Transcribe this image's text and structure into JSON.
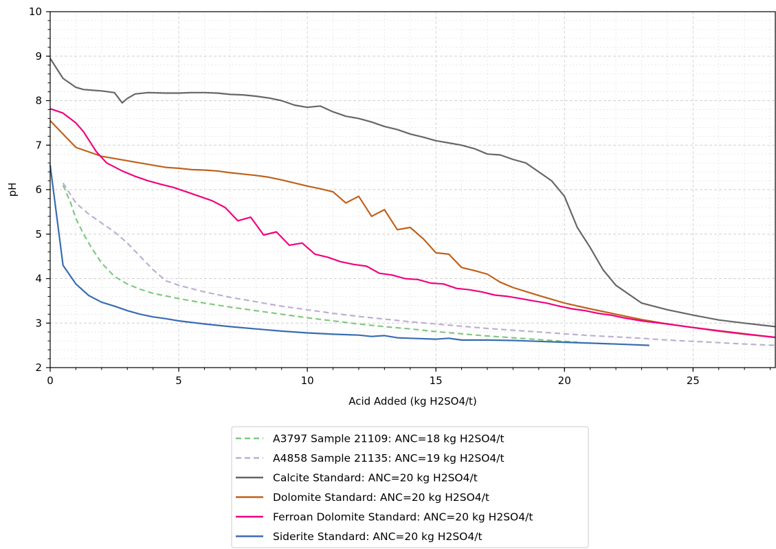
{
  "chart_data": {
    "type": "line",
    "title": "",
    "xlabel": "Acid Added (kg H2SO4/t)",
    "ylabel": "pH",
    "xlim": [
      0,
      28.2
    ],
    "ylim": [
      2,
      10
    ],
    "xticks": [
      "0",
      "5",
      "10",
      "15",
      "20",
      "25"
    ],
    "yticks": [
      "2",
      "3",
      "4",
      "5",
      "6",
      "7",
      "8",
      "9",
      "10"
    ],
    "grid": true,
    "legend_position": "below plot, centered",
    "series": [
      {
        "name": "A3797 Sample 21109: ANC=18 kg H2SO4/t",
        "color": "#7fc97f",
        "dash": "dashed",
        "x": [
          0.5,
          0.8,
          1.0,
          1.3,
          1.6,
          2.0,
          2.5,
          3.0,
          3.5,
          4.0,
          5.0,
          6.0,
          7.0,
          8.0,
          9.0,
          10.0,
          11.0,
          12.0,
          13.0,
          14.0,
          15.0,
          16.0,
          17.0,
          18.0,
          19.0,
          20.0,
          20.5
        ],
        "y": [
          6.1,
          5.7,
          5.35,
          5.0,
          4.7,
          4.35,
          4.05,
          3.88,
          3.76,
          3.67,
          3.55,
          3.45,
          3.36,
          3.28,
          3.2,
          3.12,
          3.05,
          2.98,
          2.92,
          2.87,
          2.81,
          2.76,
          2.71,
          2.67,
          2.63,
          2.59,
          2.57
        ]
      },
      {
        "name": "A4858 Sample 21135: ANC=19 kg H2SO4/t",
        "color": "#beaed4",
        "dash": "dashed",
        "x": [
          0.5,
          1.0,
          1.5,
          2.0,
          2.5,
          3.0,
          3.5,
          4.0,
          4.5,
          5.0,
          6.0,
          7.0,
          8.0,
          9.0,
          10.0,
          11.0,
          12.0,
          13.0,
          14.0,
          15.0,
          16.0,
          17.0,
          18.0,
          19.0,
          20.0,
          21.0,
          22.0,
          23.0,
          24.0,
          25.0,
          26.0,
          27.0,
          28.2
        ],
        "y": [
          6.15,
          5.7,
          5.45,
          5.25,
          5.05,
          4.8,
          4.5,
          4.2,
          3.95,
          3.85,
          3.7,
          3.58,
          3.48,
          3.38,
          3.3,
          3.22,
          3.15,
          3.09,
          3.03,
          2.98,
          2.93,
          2.88,
          2.84,
          2.8,
          2.76,
          2.72,
          2.69,
          2.66,
          2.62,
          2.59,
          2.56,
          2.53,
          2.5
        ]
      },
      {
        "name": "Calcite Standard: ANC=20 kg H2SO4/t",
        "color": "#666666",
        "dash": "solid",
        "x": [
          0,
          0.5,
          1.0,
          1.3,
          2.0,
          2.5,
          2.8,
          3.0,
          3.3,
          3.8,
          4.5,
          5.0,
          5.5,
          6.0,
          6.5,
          7.0,
          7.5,
          8.0,
          8.5,
          9.0,
          9.5,
          10.0,
          10.5,
          11.0,
          11.5,
          12.0,
          12.5,
          13.0,
          13.5,
          14.0,
          14.5,
          15.0,
          15.5,
          16.0,
          16.5,
          17.0,
          17.5,
          18.0,
          18.5,
          19.0,
          19.5,
          20.0,
          20.5,
          21.0,
          21.5,
          22.0,
          22.5,
          23.0,
          24.0,
          25.0,
          26.0,
          27.0,
          28.2
        ],
        "y": [
          8.95,
          8.5,
          8.3,
          8.25,
          8.22,
          8.18,
          7.95,
          8.05,
          8.15,
          8.18,
          8.17,
          8.17,
          8.18,
          8.18,
          8.17,
          8.14,
          8.13,
          8.1,
          8.06,
          8.0,
          7.9,
          7.85,
          7.88,
          7.75,
          7.65,
          7.6,
          7.52,
          7.42,
          7.35,
          7.25,
          7.18,
          7.1,
          7.05,
          7.0,
          6.92,
          6.8,
          6.78,
          6.68,
          6.6,
          6.4,
          6.2,
          5.85,
          5.15,
          4.7,
          4.2,
          3.85,
          3.65,
          3.45,
          3.3,
          3.18,
          3.07,
          3.0,
          2.92
        ]
      },
      {
        "name": "Dolomite Standard: ANC=20 kg H2SO4/t",
        "color": "#c0601a",
        "dash": "solid",
        "x": [
          0,
          0.5,
          1.0,
          1.5,
          2.0,
          2.5,
          3.0,
          3.5,
          4.0,
          4.5,
          5.0,
          5.5,
          6.0,
          6.5,
          7.0,
          7.5,
          8.0,
          8.5,
          9.0,
          9.5,
          10.0,
          10.5,
          11.0,
          11.5,
          12.0,
          12.5,
          13.0,
          13.5,
          14.0,
          14.5,
          15.0,
          15.5,
          16.0,
          16.5,
          17.0,
          17.5,
          18.0,
          19.0,
          20.0,
          21.0,
          22.0,
          23.0,
          24.0,
          25.0,
          26.0,
          27.0,
          28.2
        ],
        "y": [
          7.55,
          7.25,
          6.95,
          6.85,
          6.75,
          6.7,
          6.65,
          6.6,
          6.55,
          6.5,
          6.48,
          6.45,
          6.44,
          6.42,
          6.38,
          6.35,
          6.32,
          6.28,
          6.22,
          6.15,
          6.08,
          6.02,
          5.95,
          5.7,
          5.85,
          5.4,
          5.55,
          5.1,
          5.15,
          4.9,
          4.58,
          4.55,
          4.25,
          4.18,
          4.1,
          3.92,
          3.8,
          3.62,
          3.45,
          3.32,
          3.2,
          3.08,
          2.98,
          2.9,
          2.82,
          2.75,
          2.68
        ]
      },
      {
        "name": "Ferroan Dolomite Standard: ANC=20 kg H2SO4/t",
        "color": "#f0027f",
        "dash": "solid",
        "x": [
          0,
          0.5,
          1.0,
          1.3,
          1.8,
          2.2,
          2.8,
          3.3,
          3.8,
          4.3,
          4.8,
          5.3,
          5.8,
          6.3,
          6.8,
          7.3,
          7.8,
          8.3,
          8.8,
          9.3,
          9.8,
          10.3,
          10.8,
          11.3,
          11.8,
          12.3,
          12.8,
          13.3,
          13.8,
          14.3,
          14.8,
          15.3,
          15.8,
          16.3,
          16.8,
          17.3,
          17.8,
          18.3,
          18.8,
          19.3,
          19.8,
          20.3,
          20.8,
          21.3,
          21.8,
          22.3,
          23.0,
          24.0,
          25.0,
          26.0,
          27.0,
          28.2
        ],
        "y": [
          7.82,
          7.72,
          7.5,
          7.3,
          6.85,
          6.6,
          6.42,
          6.3,
          6.2,
          6.12,
          6.05,
          5.95,
          5.85,
          5.75,
          5.6,
          5.3,
          5.38,
          4.98,
          5.05,
          4.75,
          4.8,
          4.55,
          4.48,
          4.38,
          4.32,
          4.28,
          4.12,
          4.08,
          4.0,
          3.98,
          3.9,
          3.88,
          3.78,
          3.75,
          3.7,
          3.63,
          3.6,
          3.55,
          3.5,
          3.45,
          3.38,
          3.32,
          3.28,
          3.22,
          3.18,
          3.12,
          3.05,
          2.98,
          2.9,
          2.83,
          2.76,
          2.68
        ]
      },
      {
        "name": "Siderite Standard: ANC=20 kg H2SO4/t",
        "color": "#386cb0",
        "dash": "solid",
        "x": [
          0,
          0.5,
          1.0,
          1.5,
          2.0,
          2.5,
          3.0,
          3.5,
          4.0,
          4.5,
          5.0,
          6.0,
          7.0,
          8.0,
          9.0,
          10.0,
          11.0,
          12.0,
          12.5,
          13.0,
          13.5,
          14.0,
          15.0,
          15.5,
          16.0,
          17.0,
          18.0,
          19.0,
          20.0,
          21.0,
          22.0,
          23.3
        ],
        "y": [
          6.55,
          4.3,
          3.88,
          3.62,
          3.47,
          3.38,
          3.28,
          3.2,
          3.14,
          3.1,
          3.05,
          2.98,
          2.92,
          2.87,
          2.82,
          2.78,
          2.75,
          2.73,
          2.7,
          2.72,
          2.67,
          2.66,
          2.64,
          2.66,
          2.62,
          2.62,
          2.61,
          2.59,
          2.57,
          2.55,
          2.53,
          2.5
        ]
      }
    ]
  }
}
